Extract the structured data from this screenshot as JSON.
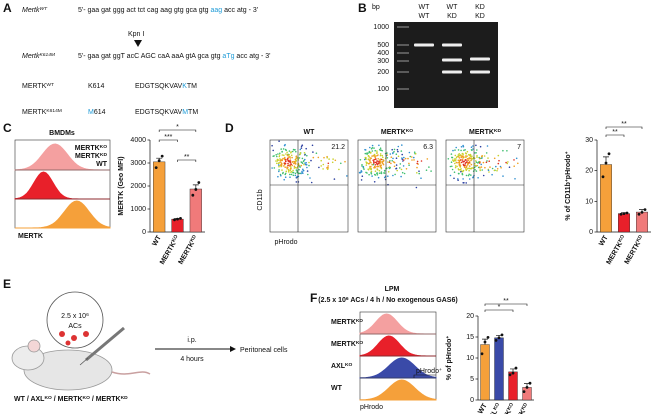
{
  "panel_a": {
    "letter": "A",
    "sequences": [
      {
        "gene": [
          {
            "t": "Mertk"
          },
          {
            "s": "WT"
          }
        ],
        "seq": [
          {
            "t": "5'- gaa gat ggg act tct cag aag gtg gca gtg "
          },
          {
            "h": "aag"
          },
          {
            "t": " acc atg - 3'"
          }
        ]
      },
      {
        "gene": [
          {
            "t": "Mertk"
          },
          {
            "s": "K614M"
          }
        ],
        "seq": [
          {
            "t": "5'- gaa gat ggT acC AGC caA aaA gtA gca gtg "
          },
          {
            "h": "aTg"
          },
          {
            "t": " acc atg - 3'"
          }
        ]
      }
    ],
    "enzyme": "Kpn I",
    "proteins": [
      {
        "name": [
          {
            "t": "MERTK"
          },
          {
            "s": "WT"
          }
        ],
        "pos": [
          {
            "t": "K614"
          }
        ],
        "motif": [
          {
            "t": "EDGTSQKVAV"
          },
          {
            "h": "K"
          },
          {
            "t": "TM"
          }
        ]
      },
      {
        "name": [
          {
            "t": "MERTK"
          },
          {
            "s": "K614M"
          }
        ],
        "pos": [
          {
            "h": "M"
          },
          {
            "t": "614"
          }
        ],
        "motif": [
          {
            "t": "EDGTSQKVAV"
          },
          {
            "h": "M"
          },
          {
            "t": "TM"
          }
        ]
      }
    ]
  },
  "panel_b": {
    "letter": "B",
    "unit": "bp",
    "ladder": [
      1000,
      500,
      400,
      300,
      200,
      100
    ],
    "lanes": [
      [
        "WT",
        "WT"
      ],
      [
        "WT",
        "KD"
      ],
      [
        "KD",
        "KD"
      ]
    ]
  },
  "panel_c": {
    "letter": "C",
    "title": "BMDMs",
    "histogram": {
      "labels": [
        [
          {
            "t": "MERTK"
          },
          {
            "s": "KO"
          }
        ],
        [
          {
            "t": "MERTK"
          },
          {
            "s": "KD"
          }
        ],
        [
          {
            "t": "WT"
          }
        ]
      ],
      "label_colors": [
        "#f08080",
        "#e8202a",
        "#f5a03a"
      ],
      "xlabel": "MERTK"
    },
    "chart": {
      "type": "bar",
      "ylabel": "MERTK (Geo MFI)",
      "categories": [
        [
          {
            "t": "WT"
          }
        ],
        [
          {
            "t": "MERTK"
          },
          {
            "s": "KO"
          }
        ],
        [
          {
            "t": "MERTK"
          },
          {
            "s": "KD"
          }
        ]
      ],
      "values": [
        3050,
        560,
        1870
      ],
      "errors": [
        160,
        30,
        180
      ],
      "points": [
        [
          2800,
          3100,
          3300
        ],
        [
          530,
          560,
          590
        ],
        [
          1600,
          1850,
          2150
        ]
      ],
      "colors": [
        "#f5a03a",
        "#e8202a",
        "#f07a7a"
      ],
      "ylim": [
        0,
        4000
      ],
      "yticks": [
        0,
        1000,
        2000,
        3000,
        4000
      ],
      "significance": [
        "***",
        "*",
        "**"
      ]
    }
  },
  "panel_d": {
    "letter": "D",
    "plots": [
      {
        "title": [
          {
            "t": "WT"
          }
        ],
        "percent": 21.2
      },
      {
        "title": [
          {
            "t": "MERTK"
          },
          {
            "s": "KO"
          }
        ],
        "percent": 6.3
      },
      {
        "title": [
          {
            "t": "MERTK"
          },
          {
            "s": "KD"
          }
        ],
        "percent": 7
      }
    ],
    "ylabel": "CD11b",
    "xlabel": "pHrodo",
    "chart": {
      "type": "bar",
      "ylabel": [
        {
          "t": "% of CD11b"
        },
        {
          "s": "+"
        },
        {
          "t": "pHrodo"
        },
        {
          "s": "+"
        }
      ],
      "categories": [
        [
          {
            "t": "WT"
          }
        ],
        [
          {
            "t": "MERTK"
          },
          {
            "s": "KO"
          }
        ],
        [
          {
            "t": "MERTK"
          },
          {
            "s": "KD"
          }
        ]
      ],
      "values": [
        22,
        6,
        6.5
      ],
      "errors": [
        2.5,
        0.3,
        0.8
      ],
      "points": [
        [
          18,
          22.5,
          25.5
        ],
        [
          5.8,
          6,
          6.2
        ],
        [
          5.8,
          6.4,
          7.3
        ]
      ],
      "colors": [
        "#f5a03a",
        "#e8202a",
        "#f07a7a"
      ],
      "ylim": [
        0,
        30
      ],
      "yticks": [
        0,
        10,
        20,
        30
      ],
      "significance": [
        "**",
        "**"
      ]
    }
  },
  "panel_e": {
    "letter": "E",
    "cells": [
      {
        "t": "2.5 x 10"
      },
      {
        "s": "6"
      }
    ],
    "cells_unit": "ACs",
    "route": "i.p.",
    "time": "4 hours",
    "outcome": "Peritoneal cells",
    "genotypes": [
      {
        "t": "WT / AXL"
      },
      {
        "s": "KO"
      },
      {
        "t": " / MERTK"
      },
      {
        "s": "KO"
      },
      {
        "t": " / MERTK"
      },
      {
        "s": "KD"
      }
    ]
  },
  "panel_f": {
    "letter": "F",
    "title": "LPM",
    "subtitle": [
      {
        "t": "(2.5 x 10"
      },
      {
        "s": "6"
      },
      {
        "t": " ACs / 4 h / No exogenous GAS6)"
      }
    ],
    "histogram": {
      "labels": [
        [
          {
            "t": "MERTK"
          },
          {
            "s": "KD"
          }
        ],
        [
          {
            "t": "MERTK"
          },
          {
            "s": "KO"
          }
        ],
        [
          {
            "t": "AXL"
          },
          {
            "s": "KO"
          }
        ],
        [
          {
            "t": "WT"
          }
        ]
      ],
      "label_colors": [
        "#f08080",
        "#e8202a",
        "#3a4aa8",
        "#f5a03a"
      ],
      "gate": [
        {
          "t": "pHrodo"
        },
        {
          "s": "+"
        }
      ],
      "xlabel": "pHrodo"
    },
    "chart": {
      "type": "bar",
      "ylabel": [
        {
          "t": "% of pHrodo"
        },
        {
          "s": "+"
        }
      ],
      "categories": [
        [
          {
            "t": "WT"
          }
        ],
        [
          {
            "t": "AXL"
          },
          {
            "s": "KO"
          }
        ],
        [
          {
            "t": "MERTK"
          },
          {
            "s": "KO"
          }
        ],
        [
          {
            "t": "MERTK"
          },
          {
            "s": "KD"
          }
        ]
      ],
      "values": [
        13.2,
        14.8,
        6.7,
        3
      ],
      "errors": [
        1.3,
        0.6,
        0.7,
        0.9
      ],
      "points": [
        [
          11,
          13.8,
          14.9
        ],
        [
          14.2,
          14.8,
          15.5
        ],
        [
          6,
          6.4,
          7.6
        ],
        [
          2,
          3,
          4
        ]
      ],
      "colors": [
        "#f5a03a",
        "#3a4aa8",
        "#e8202a",
        "#f07a7a"
      ],
      "ylim": [
        0,
        20
      ],
      "yticks": [
        0,
        5,
        10,
        15,
        20
      ],
      "significance": [
        "*",
        "**"
      ]
    }
  }
}
